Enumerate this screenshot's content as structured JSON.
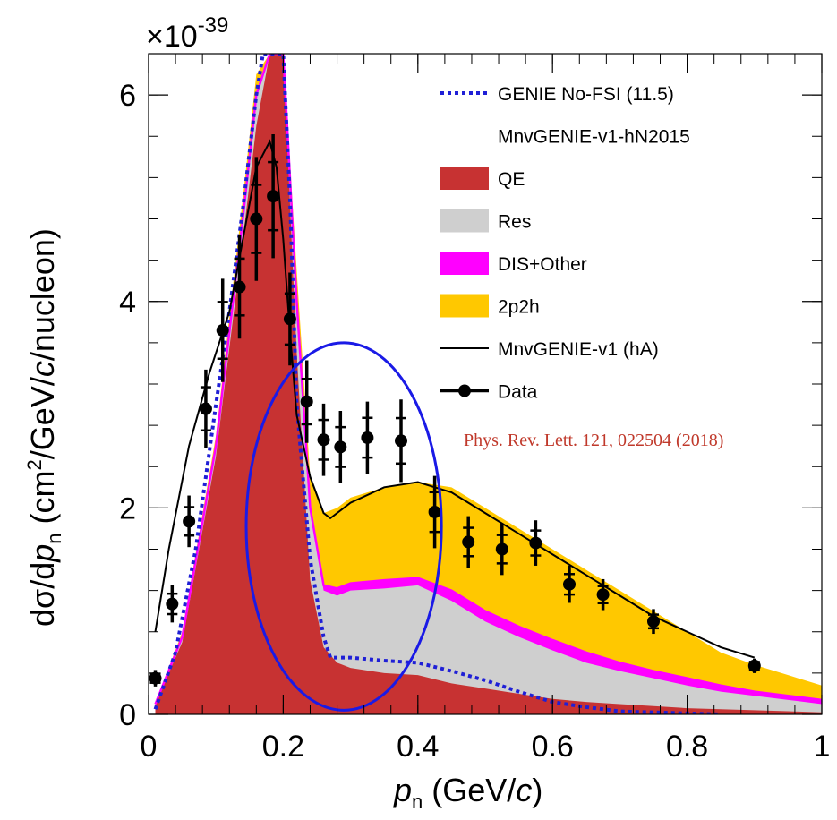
{
  "chart_data": {
    "type": "area",
    "y_multiplier": "×10",
    "y_multiplier_exp": "-39",
    "xlabel": {
      "var": "p",
      "sub": "n",
      "rest": " (GeV/",
      "unit_italic": "c",
      "close": ")"
    },
    "ylabel": {
      "pre": "dσ/d",
      "var": "p",
      "sub": "n",
      "mid": " (cm",
      "sup": "2",
      "mid2": "/GeV/",
      "unit_italic": "c",
      "post": "/nucleon)"
    },
    "xlim": [
      0,
      1
    ],
    "ylim": [
      0,
      6.4
    ],
    "x_ticks": [
      {
        "v": 0,
        "label": "0"
      },
      {
        "v": 0.2,
        "label": "0.2"
      },
      {
        "v": 0.4,
        "label": "0.4"
      },
      {
        "v": 0.6,
        "label": "0.6"
      },
      {
        "v": 0.8,
        "label": "0.8"
      },
      {
        "v": 1,
        "label": "1"
      }
    ],
    "y_ticks": [
      {
        "v": 0,
        "label": "0"
      },
      {
        "v": 2,
        "label": "2"
      },
      {
        "v": 4,
        "label": "4"
      },
      {
        "v": 6,
        "label": "6"
      }
    ],
    "grid": false,
    "legend_position": "top-right",
    "legend": [
      {
        "key": "nofsi",
        "label": "GENIE No-FSI (11.5)",
        "marker": "dotted",
        "color": "#1f1fd6"
      },
      {
        "key": "header",
        "label": "MnvGENIE-v1-hN2015",
        "marker": "none"
      },
      {
        "key": "qe",
        "label": "QE",
        "marker": "box",
        "color": "#c73232"
      },
      {
        "key": "res",
        "label": "Res",
        "marker": "box",
        "color": "#cfcfcf"
      },
      {
        "key": "dis",
        "label": "DIS+Other",
        "marker": "box",
        "color": "#ff00ff"
      },
      {
        "key": "twop",
        "label": "2p2h",
        "marker": "box",
        "color": "#ffc800"
      },
      {
        "key": "ha",
        "label": "MnvGENIE-v1 (hA)",
        "marker": "line",
        "color": "#000000"
      },
      {
        "key": "data",
        "label": "Data",
        "marker": "point",
        "color": "#000000"
      }
    ],
    "annotation": "Phys. Rev. Lett. 121, 022504 (2018)",
    "colors": {
      "qe": "#c73232",
      "res": "#cfcfcf",
      "dis": "#ff00ff",
      "twop": "#ffc800",
      "nofsi": "#1f1fd6",
      "ha": "#000000",
      "ellipse": "#1a1ae6"
    },
    "x": [
      0.01,
      0.05,
      0.1,
      0.14,
      0.16,
      0.18,
      0.2,
      0.22,
      0.24,
      0.26,
      0.28,
      0.3,
      0.35,
      0.4,
      0.45,
      0.5,
      0.55,
      0.6,
      0.65,
      0.7,
      0.75,
      0.8,
      0.85,
      0.9,
      0.95,
      1.0
    ],
    "series": [
      {
        "key": "qe",
        "values": [
          0.1,
          0.7,
          2.5,
          4.6,
          5.7,
          6.4,
          6.4,
          3.5,
          1.3,
          0.65,
          0.5,
          0.45,
          0.4,
          0.38,
          0.3,
          0.25,
          0.2,
          0.15,
          0.12,
          0.1,
          0.08,
          0.06,
          0.05,
          0.04,
          0.03,
          0.02
        ]
      },
      {
        "key": "res",
        "values": [
          0.1,
          0.75,
          2.6,
          4.8,
          6.0,
          6.4,
          6.4,
          4.0,
          2.0,
          1.2,
          1.15,
          1.2,
          1.22,
          1.25,
          1.1,
          0.9,
          0.75,
          0.62,
          0.5,
          0.42,
          0.35,
          0.28,
          0.22,
          0.18,
          0.14,
          0.1
        ]
      },
      {
        "key": "dis",
        "values": [
          0.1,
          0.75,
          2.6,
          4.8,
          6.0,
          6.4,
          6.4,
          4.0,
          2.0,
          1.25,
          1.22,
          1.27,
          1.3,
          1.32,
          1.2,
          1.0,
          0.85,
          0.72,
          0.6,
          0.5,
          0.42,
          0.35,
          0.28,
          0.22,
          0.18,
          0.14
        ]
      },
      {
        "key": "twop",
        "values": [
          0.1,
          0.8,
          2.7,
          5.0,
          6.2,
          6.4,
          6.4,
          4.3,
          2.3,
          1.95,
          2.0,
          2.1,
          2.2,
          2.25,
          2.2,
          2.0,
          1.8,
          1.6,
          1.4,
          1.2,
          1.0,
          0.8,
          0.6,
          0.48,
          0.38,
          0.28
        ]
      }
    ],
    "ha_line": {
      "x": [
        0.01,
        0.03,
        0.06,
        0.09,
        0.12,
        0.14,
        0.16,
        0.18,
        0.19,
        0.2,
        0.21,
        0.22,
        0.24,
        0.26,
        0.27,
        0.28,
        0.3,
        0.35,
        0.4,
        0.45,
        0.5,
        0.55,
        0.6,
        0.65,
        0.7,
        0.75,
        0.8,
        0.85,
        0.9
      ],
      "y": [
        0.8,
        1.6,
        2.6,
        3.3,
        3.9,
        4.6,
        5.3,
        5.55,
        5.3,
        4.6,
        3.7,
        2.9,
        2.3,
        1.95,
        1.9,
        1.95,
        2.05,
        2.2,
        2.25,
        2.15,
        1.95,
        1.75,
        1.55,
        1.35,
        1.15,
        0.95,
        0.8,
        0.65,
        0.55
      ]
    },
    "nofsi_line": {
      "x": [
        0.01,
        0.04,
        0.07,
        0.1,
        0.12,
        0.14,
        0.16,
        0.17,
        0.2,
        0.21,
        0.22,
        0.24,
        0.26,
        0.27,
        0.3,
        0.35,
        0.4,
        0.45,
        0.5,
        0.55,
        0.6,
        0.65,
        0.7,
        0.75,
        0.8,
        0.85
      ],
      "y": [
        0.05,
        0.6,
        1.6,
        3.0,
        3.9,
        4.9,
        6.0,
        6.4,
        6.4,
        5.0,
        3.0,
        1.5,
        0.75,
        0.55,
        0.55,
        0.52,
        0.5,
        0.42,
        0.33,
        0.22,
        0.12,
        0.07,
        0.03,
        0.02,
        0.01,
        0.0
      ]
    },
    "data_points": [
      {
        "x": 0.01,
        "y": 0.35,
        "err": 0.08
      },
      {
        "x": 0.035,
        "y": 1.07,
        "err": 0.18
      },
      {
        "x": 0.06,
        "y": 1.87,
        "err": 0.25
      },
      {
        "x": 0.085,
        "y": 2.96,
        "err": 0.38
      },
      {
        "x": 0.11,
        "y": 3.72,
        "err": 0.5
      },
      {
        "x": 0.135,
        "y": 4.14,
        "err": 0.5
      },
      {
        "x": 0.16,
        "y": 4.8,
        "err": 0.6
      },
      {
        "x": 0.185,
        "y": 5.02,
        "err": 0.6
      },
      {
        "x": 0.21,
        "y": 3.83,
        "err": 0.45
      },
      {
        "x": 0.235,
        "y": 3.03,
        "err": 0.4
      },
      {
        "x": 0.26,
        "y": 2.66,
        "err": 0.35
      },
      {
        "x": 0.285,
        "y": 2.59,
        "err": 0.35
      },
      {
        "x": 0.325,
        "y": 2.68,
        "err": 0.35
      },
      {
        "x": 0.375,
        "y": 2.65,
        "err": 0.4
      },
      {
        "x": 0.425,
        "y": 1.96,
        "err": 0.35
      },
      {
        "x": 0.475,
        "y": 1.67,
        "err": 0.25
      },
      {
        "x": 0.525,
        "y": 1.6,
        "err": 0.25
      },
      {
        "x": 0.575,
        "y": 1.66,
        "err": 0.22
      },
      {
        "x": 0.625,
        "y": 1.26,
        "err": 0.18
      },
      {
        "x": 0.675,
        "y": 1.16,
        "err": 0.15
      },
      {
        "x": 0.75,
        "y": 0.9,
        "err": 0.12
      },
      {
        "x": 0.9,
        "y": 0.47,
        "err": 0.07
      }
    ],
    "ellipse": {
      "cx": 0.29,
      "cy": 1.82,
      "rx": 0.145,
      "ry": 1.78
    }
  }
}
